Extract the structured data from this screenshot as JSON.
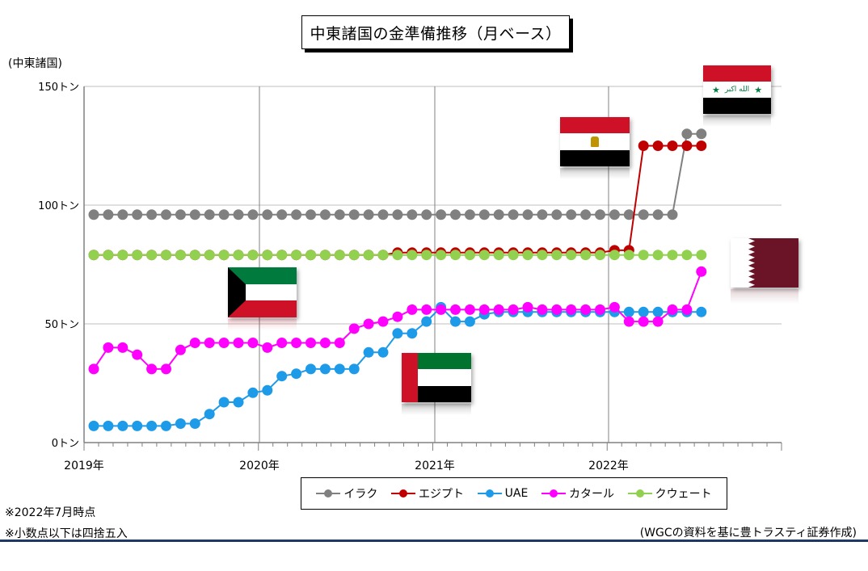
{
  "title": "中東諸国の金準備推移（月ベース）",
  "unit_label": "(中東諸国)",
  "notes": [
    "※2022年7月時点",
    "※小数点以下は四捨五入"
  ],
  "source": "(WGCの資料を基に豊トラスティ証券作成)",
  "colors": {
    "iraq": "#808080",
    "egypt": "#c00000",
    "uae": "#1e9be8",
    "qatar": "#ff00ff",
    "kuwait": "#92d050"
  },
  "chart_data": {
    "type": "line",
    "xlabel": "",
    "ylabel": "(中東諸国)",
    "ylim": [
      0,
      150
    ],
    "yticks": [
      0,
      50,
      100,
      150
    ],
    "ytick_labels": [
      "0トン",
      "50トン",
      "100トン",
      "150トン"
    ],
    "xtick_labels": [
      "2019年",
      "2020年",
      "2021年",
      "2022年"
    ],
    "grid": true,
    "legend_position": "bottom",
    "months": [
      "2019-01",
      "2019-02",
      "2019-03",
      "2019-04",
      "2019-05",
      "2019-06",
      "2019-07",
      "2019-08",
      "2019-09",
      "2019-10",
      "2019-11",
      "2019-12",
      "2020-01",
      "2020-02",
      "2020-03",
      "2020-04",
      "2020-05",
      "2020-06",
      "2020-07",
      "2020-08",
      "2020-09",
      "2020-10",
      "2020-11",
      "2020-12",
      "2021-01",
      "2021-02",
      "2021-03",
      "2021-04",
      "2021-05",
      "2021-06",
      "2021-07",
      "2021-08",
      "2021-09",
      "2021-10",
      "2021-11",
      "2021-12",
      "2022-01",
      "2022-02",
      "2022-03",
      "2022-04",
      "2022-05",
      "2022-06",
      "2022-07"
    ],
    "series": [
      {
        "name": "イラク",
        "color": "#808080",
        "values": [
          96,
          96,
          96,
          96,
          96,
          96,
          96,
          96,
          96,
          96,
          96,
          96,
          96,
          96,
          96,
          96,
          96,
          96,
          96,
          96,
          96,
          96,
          96,
          96,
          96,
          96,
          96,
          96,
          96,
          96,
          96,
          96,
          96,
          96,
          96,
          96,
          96,
          96,
          96,
          96,
          96,
          130,
          130
        ]
      },
      {
        "name": "エジプト",
        "color": "#c00000",
        "values": [
          79,
          79,
          79,
          79,
          79,
          79,
          79,
          79,
          79,
          79,
          79,
          79,
          79,
          79,
          79,
          79,
          79,
          79,
          79,
          79,
          79,
          80,
          80,
          80,
          80,
          80,
          80,
          80,
          80,
          80,
          80,
          80,
          80,
          80,
          80,
          80,
          81,
          81,
          125,
          125,
          125,
          125,
          125
        ]
      },
      {
        "name": "UAE",
        "color": "#1e9be8",
        "values": [
          7,
          7,
          7,
          7,
          7,
          7,
          8,
          8,
          12,
          17,
          17,
          21,
          22,
          28,
          29,
          31,
          31,
          31,
          31,
          38,
          38,
          46,
          46,
          51,
          57,
          51,
          51,
          54,
          55,
          55,
          55,
          55,
          55,
          55,
          55,
          55,
          55,
          55,
          55,
          55,
          55,
          55,
          55
        ]
      },
      {
        "name": "カタール",
        "color": "#ff00ff",
        "values": [
          31,
          40,
          40,
          37,
          31,
          31,
          39,
          42,
          42,
          42,
          42,
          42,
          40,
          42,
          42,
          42,
          42,
          42,
          48,
          50,
          51,
          53,
          56,
          56,
          56,
          56,
          56,
          56,
          56,
          56,
          57,
          56,
          56,
          56,
          56,
          56,
          57,
          51,
          51,
          51,
          56,
          56,
          72
        ]
      },
      {
        "name": "クウェート",
        "color": "#92d050",
        "values": [
          79,
          79,
          79,
          79,
          79,
          79,
          79,
          79,
          79,
          79,
          79,
          79,
          79,
          79,
          79,
          79,
          79,
          79,
          79,
          79,
          79,
          79,
          79,
          79,
          79,
          79,
          79,
          79,
          79,
          79,
          79,
          79,
          79,
          79,
          79,
          79,
          79,
          79,
          79,
          79,
          79,
          79,
          79
        ]
      }
    ]
  },
  "flags": [
    {
      "country": "イラク",
      "name": "iraq-flag-icon"
    },
    {
      "country": "エジプト",
      "name": "egypt-flag-icon"
    },
    {
      "country": "UAE",
      "name": "uae-flag-icon"
    },
    {
      "country": "カタール",
      "name": "qatar-flag-icon"
    },
    {
      "country": "クウェート",
      "name": "kuwait-flag-icon"
    }
  ]
}
